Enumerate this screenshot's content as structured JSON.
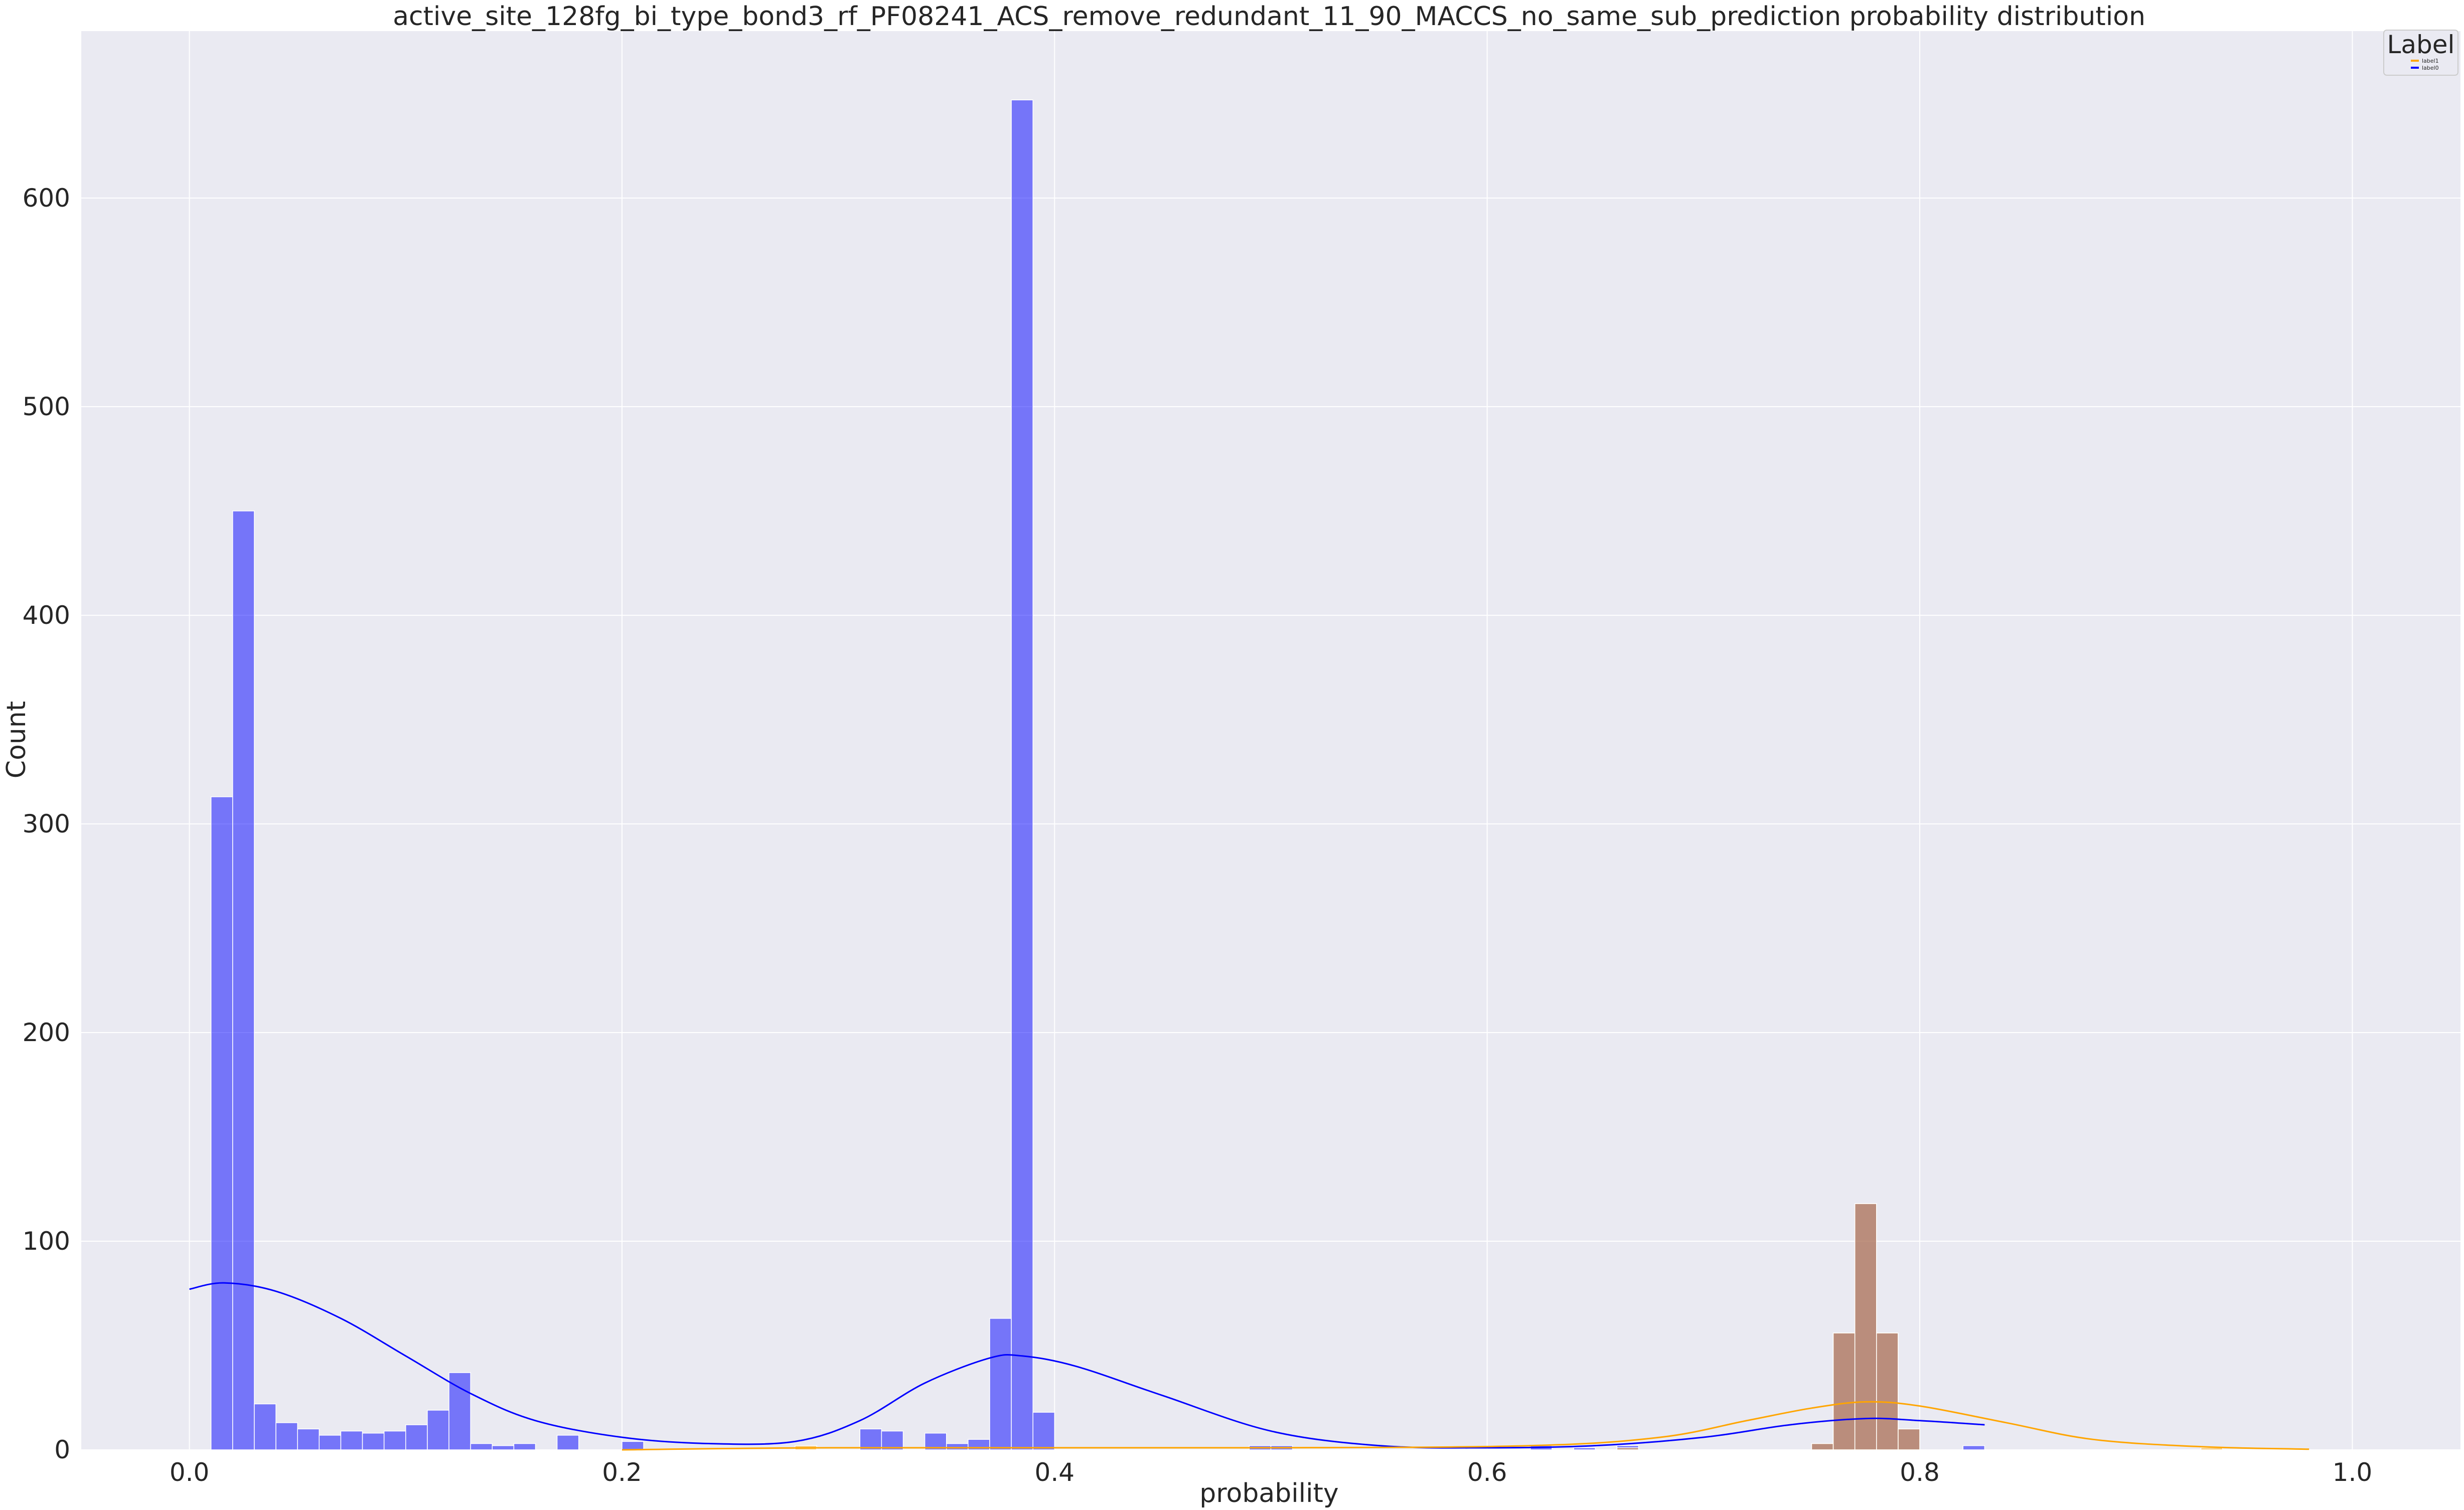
{
  "chart_data": {
    "type": "bar",
    "title": "active_site_128fg_bi_type_bond3_rf_PF08241_ACS_remove_redundant_11_90_MACCS_no_same_sub_prediction probability distribution",
    "xlabel": "probability",
    "ylabel": "Count",
    "xlim": [
      -0.05,
      1.05
    ],
    "ylim": [
      0,
      680
    ],
    "x_ticks": [
      "0.0",
      "0.2",
      "0.4",
      "0.6",
      "0.8",
      "1.0"
    ],
    "y_ticks": [
      "0",
      "100",
      "200",
      "300",
      "400",
      "500",
      "600"
    ],
    "grid": true,
    "legend": {
      "title": "Label",
      "placement": "top-right",
      "entries": [
        "label1",
        "label0"
      ]
    },
    "bin_width": 0.01,
    "series": [
      {
        "name": "label0",
        "color": "#0000ff",
        "bins": [
          {
            "x": 0.01,
            "count": 313
          },
          {
            "x": 0.02,
            "count": 450
          },
          {
            "x": 0.03,
            "count": 22
          },
          {
            "x": 0.04,
            "count": 13
          },
          {
            "x": 0.05,
            "count": 10
          },
          {
            "x": 0.06,
            "count": 7
          },
          {
            "x": 0.07,
            "count": 9
          },
          {
            "x": 0.08,
            "count": 8
          },
          {
            "x": 0.09,
            "count": 9
          },
          {
            "x": 0.1,
            "count": 12
          },
          {
            "x": 0.11,
            "count": 19
          },
          {
            "x": 0.12,
            "count": 37
          },
          {
            "x": 0.13,
            "count": 3
          },
          {
            "x": 0.14,
            "count": 2
          },
          {
            "x": 0.15,
            "count": 3
          },
          {
            "x": 0.17,
            "count": 7
          },
          {
            "x": 0.2,
            "count": 4
          },
          {
            "x": 0.31,
            "count": 10
          },
          {
            "x": 0.32,
            "count": 9
          },
          {
            "x": 0.34,
            "count": 8
          },
          {
            "x": 0.35,
            "count": 3
          },
          {
            "x": 0.36,
            "count": 5
          },
          {
            "x": 0.37,
            "count": 63
          },
          {
            "x": 0.38,
            "count": 647
          },
          {
            "x": 0.39,
            "count": 18
          },
          {
            "x": 0.49,
            "count": 2
          },
          {
            "x": 0.5,
            "count": 2
          },
          {
            "x": 0.62,
            "count": 2
          },
          {
            "x": 0.64,
            "count": 1
          },
          {
            "x": 0.66,
            "count": 2
          },
          {
            "x": 0.75,
            "count": 3
          },
          {
            "x": 0.76,
            "count": 56
          },
          {
            "x": 0.77,
            "count": 118
          },
          {
            "x": 0.78,
            "count": 56
          },
          {
            "x": 0.79,
            "count": 10
          },
          {
            "x": 0.82,
            "count": 2
          }
        ],
        "kde": [
          [
            0.0,
            77
          ],
          [
            0.016,
            80
          ],
          [
            0.04,
            76
          ],
          [
            0.07,
            63
          ],
          [
            0.1,
            45
          ],
          [
            0.13,
            27
          ],
          [
            0.16,
            14
          ],
          [
            0.2,
            6
          ],
          [
            0.24,
            3
          ],
          [
            0.28,
            4
          ],
          [
            0.31,
            14
          ],
          [
            0.34,
            32
          ],
          [
            0.37,
            44
          ],
          [
            0.385,
            45
          ],
          [
            0.41,
            40
          ],
          [
            0.45,
            26
          ],
          [
            0.5,
            9
          ],
          [
            0.55,
            2
          ],
          [
            0.6,
            1
          ],
          [
            0.65,
            2
          ],
          [
            0.7,
            6
          ],
          [
            0.74,
            12
          ],
          [
            0.775,
            15
          ],
          [
            0.8,
            14
          ],
          [
            0.83,
            12
          ]
        ]
      },
      {
        "name": "label1",
        "color": "#ffa500",
        "bins": [
          {
            "x": 0.28,
            "count": 2
          },
          {
            "x": 0.66,
            "count": 1
          },
          {
            "x": 0.75,
            "count": 3
          },
          {
            "x": 0.76,
            "count": 56
          },
          {
            "x": 0.77,
            "count": 118
          },
          {
            "x": 0.78,
            "count": 56
          },
          {
            "x": 0.79,
            "count": 10
          },
          {
            "x": 0.93,
            "count": 1
          }
        ],
        "kde": [
          [
            0.2,
            0
          ],
          [
            0.3,
            1
          ],
          [
            0.5,
            1
          ],
          [
            0.62,
            2
          ],
          [
            0.68,
            6
          ],
          [
            0.72,
            14
          ],
          [
            0.75,
            20
          ],
          [
            0.775,
            23
          ],
          [
            0.8,
            21
          ],
          [
            0.84,
            13
          ],
          [
            0.88,
            5
          ],
          [
            0.93,
            1.5
          ],
          [
            0.98,
            0.3
          ]
        ]
      }
    ]
  }
}
